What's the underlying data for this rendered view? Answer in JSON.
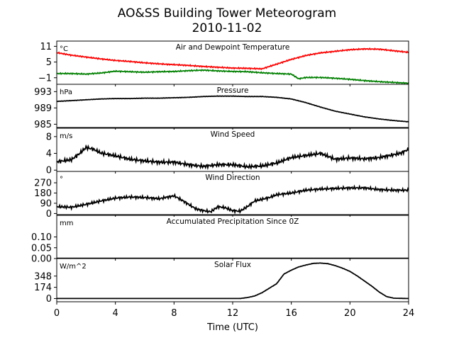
{
  "title_line1": "AO&SS Building Tower Meteorogram",
  "title_line2": "2010-11-02",
  "chart_data": {
    "type": "line",
    "xlabel": "Time (UTC)",
    "xlim": [
      0,
      24
    ],
    "xticks": [
      "0",
      "4",
      "8",
      "12",
      "16",
      "20",
      "24"
    ],
    "panels": [
      {
        "title": "Air and Dewpoint Temperature",
        "unit": "°C",
        "ylim": [
          -3.5,
          13
        ],
        "yticks": [
          11,
          5,
          -1
        ],
        "series": [
          {
            "color": "#ff0000",
            "x": [
              0,
              1,
              2,
              3,
              4,
              5,
              6,
              7,
              8,
              9,
              10,
              11,
              12,
              13,
              14,
              15,
              16,
              17,
              18,
              19,
              20,
              21,
              22,
              23,
              24
            ],
            "y": [
              8.6,
              7.6,
              6.9,
              6.2,
              5.6,
              5.2,
              4.7,
              4.3,
              4.0,
              3.7,
              3.3,
              3.0,
              2.7,
              2.6,
              2.4,
              4.2,
              6.0,
              7.5,
              8.5,
              9.1,
              9.7,
              10.0,
              9.9,
              9.3,
              8.7
            ]
          },
          {
            "color": "#008000",
            "x": [
              0,
              1,
              2,
              3,
              4,
              5,
              6,
              7,
              8,
              9,
              10,
              11,
              12,
              13,
              14,
              15,
              16,
              16.5,
              17,
              18,
              19,
              20,
              21,
              22,
              23,
              24
            ],
            "y": [
              0.6,
              0.6,
              0.4,
              0.8,
              1.5,
              1.3,
              1.1,
              1.3,
              1.4,
              1.7,
              1.9,
              1.6,
              1.4,
              1.3,
              0.9,
              0.6,
              0.4,
              -1.4,
              -0.9,
              -0.9,
              -1.2,
              -1.6,
              -2.1,
              -2.5,
              -2.8,
              -3.1
            ]
          }
        ]
      },
      {
        "title": "Pressure",
        "unit": "hPa",
        "ylim": [
          984.2,
          994.8
        ],
        "yticks": [
          993,
          989,
          985
        ],
        "series": [
          {
            "color": "#000000",
            "x": [
              0,
              1,
              2,
              3,
              4,
              5,
              6,
              7,
              8,
              9,
              10,
              11,
              12,
              13,
              14,
              15,
              16,
              17,
              18,
              19,
              20,
              21,
              22,
              23,
              24
            ],
            "y": [
              990.6,
              990.8,
              991.0,
              991.2,
              991.3,
              991.3,
              991.4,
              991.4,
              991.5,
              991.6,
              991.8,
              991.9,
              991.9,
              991.8,
              991.8,
              991.6,
              991.2,
              990.3,
              989.2,
              988.2,
              987.5,
              986.8,
              986.3,
              985.9,
              985.6
            ]
          }
        ]
      },
      {
        "title": "Wind Speed",
        "unit": "m/s",
        "ylim": [
          -0.3,
          10
        ],
        "yticks": [
          8,
          4,
          0
        ],
        "series": [
          {
            "color": "#000000",
            "x": [
              0,
              1,
              1.5,
              2,
              2.5,
              3,
              4,
              5,
              6,
              7,
              8,
              9,
              10,
              11,
              12,
              13,
              14,
              15,
              16,
              17,
              18,
              19,
              20,
              21,
              22,
              23,
              23.5,
              24
            ],
            "y": [
              2.0,
              2.5,
              3.8,
              5.4,
              5.0,
              4.1,
              3.4,
              2.6,
              2.2,
              1.9,
              1.9,
              1.3,
              0.9,
              1.3,
              1.3,
              0.8,
              1.0,
              1.7,
              3.0,
              3.5,
              4.0,
              2.6,
              2.9,
              2.7,
              3.0,
              3.7,
              4.1,
              5.0
            ]
          }
        ]
      },
      {
        "title": "Wind Direction",
        "unit": "°",
        "ylim": [
          -10,
          370
        ],
        "yticks": [
          270,
          180,
          90,
          0
        ],
        "series": [
          {
            "color": "#000000",
            "x": [
              0,
              1,
              2,
              3,
              4,
              5,
              6,
              7,
              8,
              8.5,
              9,
              9.5,
              10,
              10.5,
              11,
              11.5,
              12,
              12.5,
              13,
              13.5,
              14,
              14.5,
              15,
              16,
              17,
              18,
              19,
              20,
              21,
              22,
              23,
              24
            ],
            "y": [
              60,
              55,
              80,
              110,
              135,
              145,
              140,
              130,
              155,
              120,
              80,
              40,
              25,
              15,
              60,
              50,
              25,
              20,
              60,
              110,
              125,
              140,
              165,
              180,
              205,
              215,
              220,
              225,
              225,
              210,
              205,
              205
            ]
          }
        ]
      },
      {
        "title": "Accumulated Precipitation Since 0Z",
        "unit": "mm",
        "ylim": [
          0,
          0.2
        ],
        "yticks": [
          0.1,
          0.05,
          0.0
        ],
        "series": [
          {
            "color": "#000000",
            "x": [
              0,
              24
            ],
            "y": [
              0,
              0
            ]
          }
        ]
      },
      {
        "title": "Solar Flux",
        "unit": "W/m^2",
        "ylim": [
          -50,
          620
        ],
        "yticks": [
          348,
          174,
          0
        ],
        "series": [
          {
            "color": "#000000",
            "x": [
              0,
              11,
              12.5,
              13,
              13.5,
              14,
              14.5,
              15,
              15.5,
              16,
              16.5,
              17,
              17.5,
              18,
              18.5,
              19,
              19.5,
              20,
              20.5,
              21,
              21.5,
              22,
              22.5,
              23,
              24
            ],
            "y": [
              0,
              0,
              0,
              15,
              40,
              90,
              160,
              230,
              380,
              440,
              490,
              520,
              545,
              550,
              540,
              510,
              470,
              420,
              350,
              270,
              190,
              100,
              30,
              5,
              0
            ]
          }
        ]
      }
    ]
  }
}
